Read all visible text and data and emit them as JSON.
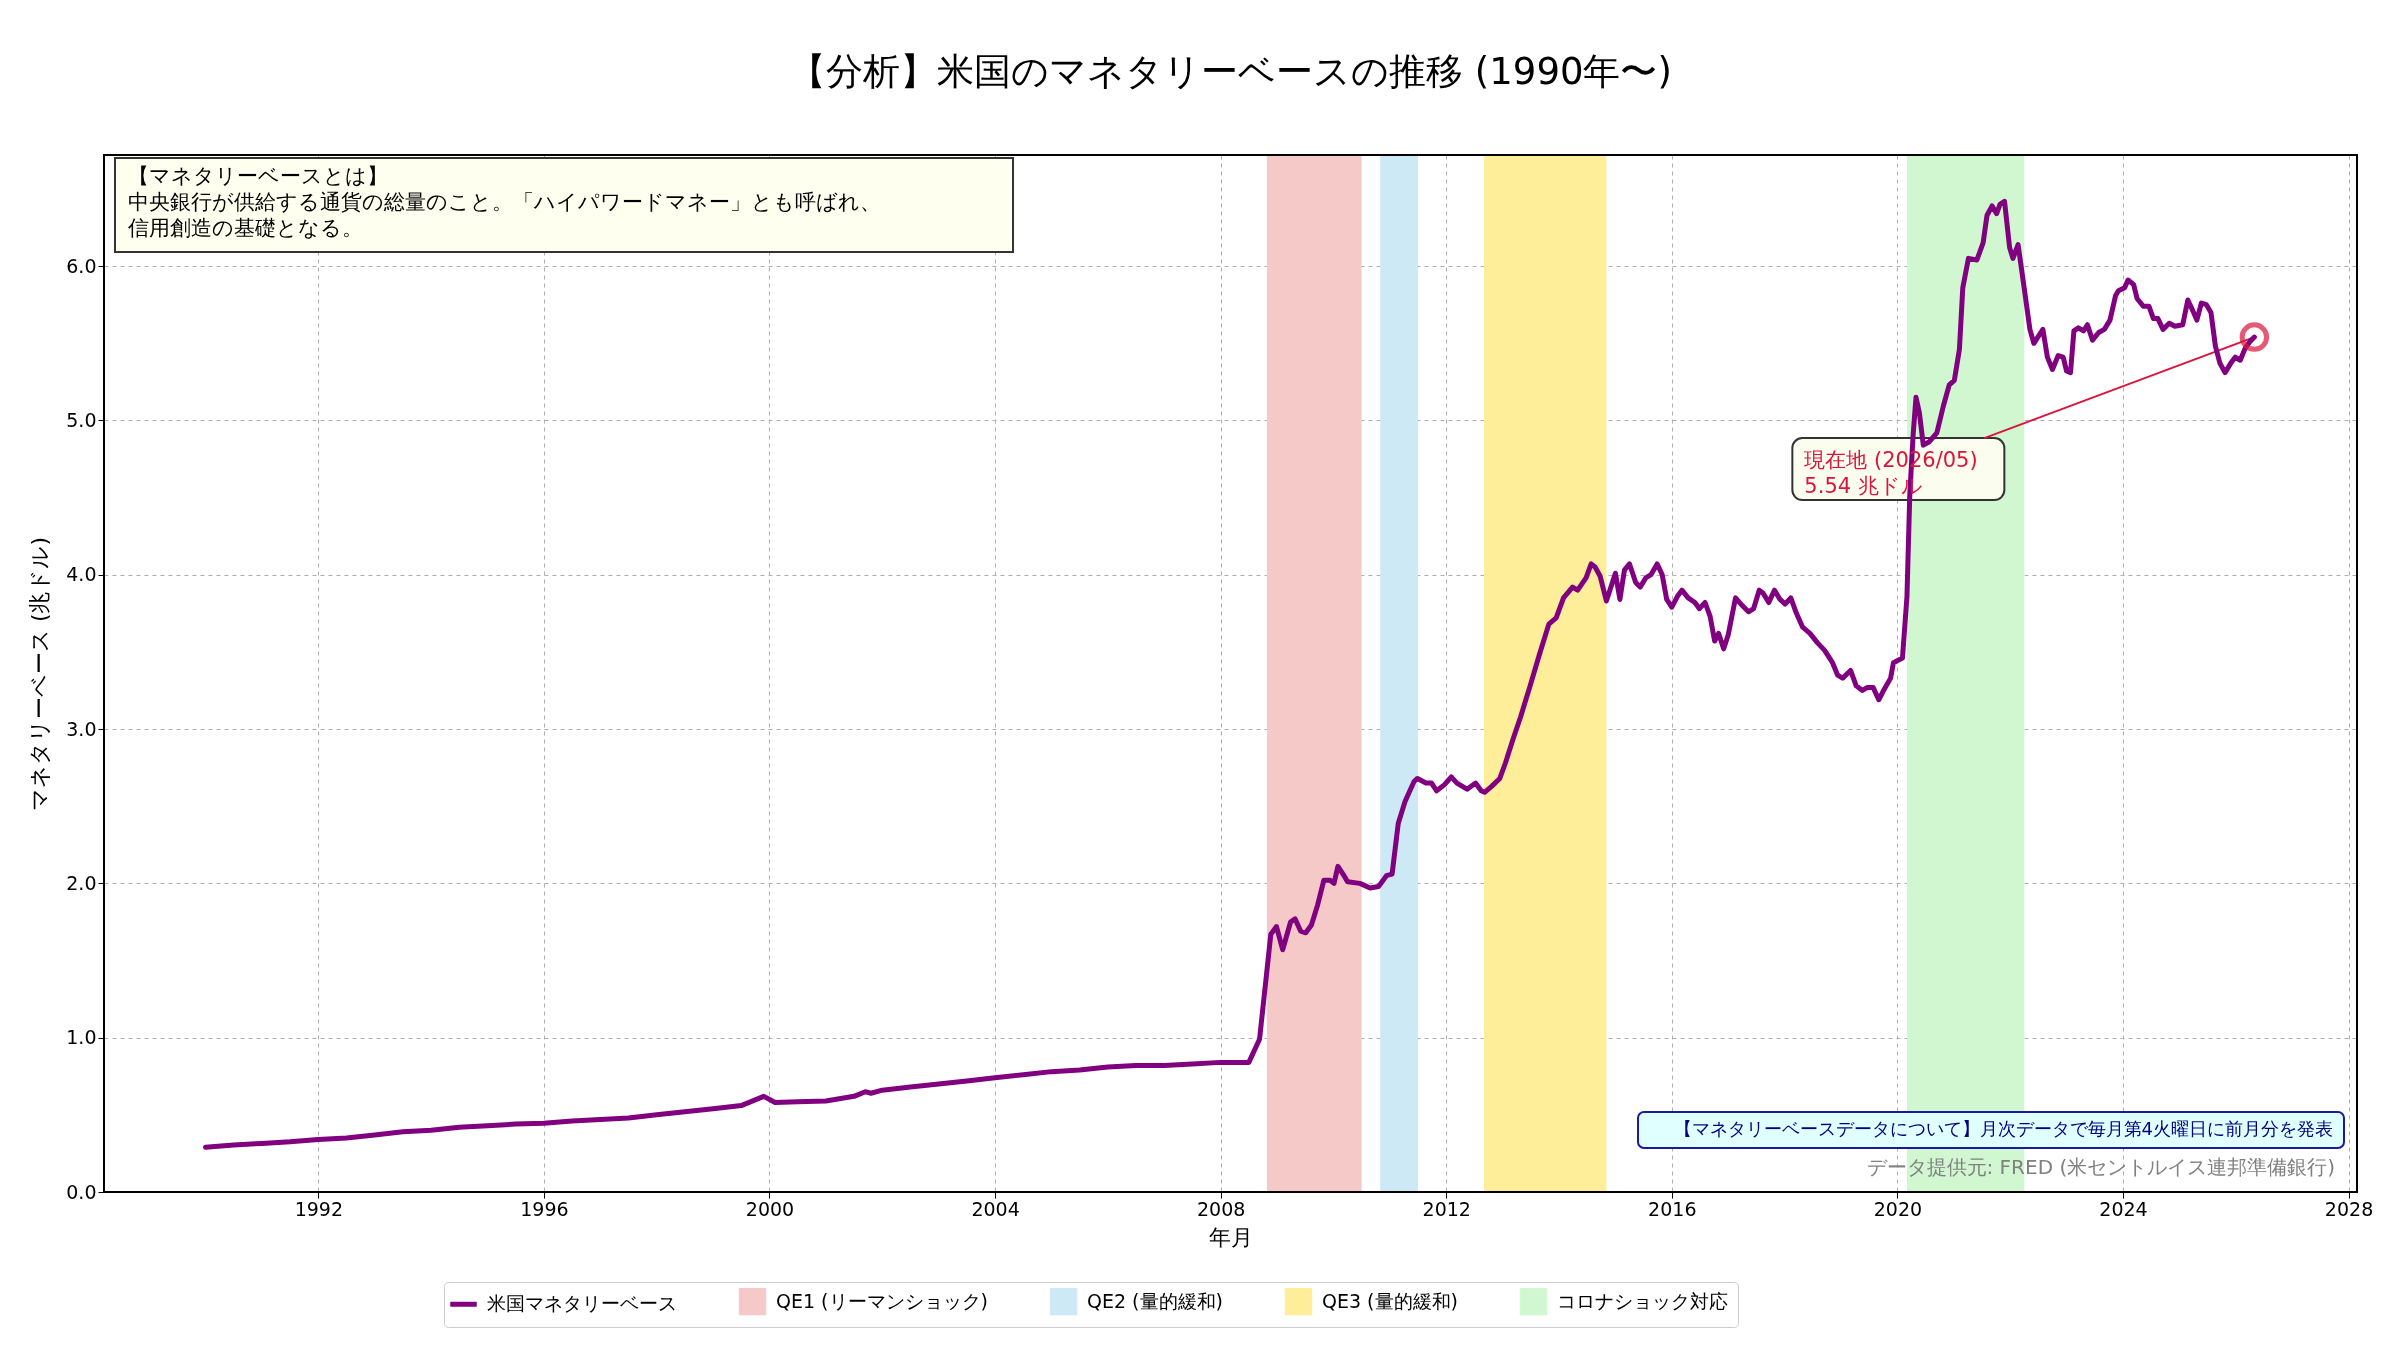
{
  "chart_data": {
    "type": "line",
    "title": "【分析】米国のマネタリーベースの推移 (1990年〜)",
    "xlabel": "年月",
    "ylabel": "マネタリーベース (兆ドル)",
    "x": [
      1990.0,
      1990.5,
      1991.0,
      1991.5,
      1992.0,
      1992.5,
      1993.0,
      1993.5,
      1994.0,
      1994.5,
      1995.0,
      1995.5,
      1996.0,
      1996.5,
      1997.0,
      1997.5,
      1998.0,
      1998.5,
      1999.0,
      1999.5,
      1999.9,
      2000.1,
      2000.5,
      2001.0,
      2001.5,
      2001.7,
      2001.8,
      2002.0,
      2002.5,
      2003.0,
      2003.5,
      2004.0,
      2004.5,
      2005.0,
      2005.5,
      2006.0,
      2006.5,
      2007.0,
      2007.5,
      2008.0,
      2008.5,
      2008.69,
      2008.89,
      2008.99,
      2009.1,
      2009.24,
      2009.32,
      2009.42,
      2009.51,
      2009.61,
      2009.72,
      2009.83,
      2009.94,
      2010.01,
      2010.08,
      2010.17,
      2010.25,
      2010.47,
      2010.65,
      2010.8,
      2010.94,
      2011.04,
      2011.15,
      2011.27,
      2011.43,
      2011.49,
      2011.64,
      2011.74,
      2011.83,
      2011.97,
      2012.09,
      2012.19,
      2012.37,
      2012.52,
      2012.62,
      2012.68,
      2012.81,
      2012.95,
      2013.05,
      2013.19,
      2013.32,
      2013.48,
      2013.65,
      2013.82,
      2013.95,
      2014.08,
      2014.24,
      2014.33,
      2014.48,
      2014.57,
      2014.64,
      2014.73,
      2014.84,
      2015.0,
      2015.08,
      2015.16,
      2015.25,
      2015.36,
      2015.44,
      2015.54,
      2015.63,
      2015.74,
      2015.83,
      2015.91,
      2016.0,
      2016.1,
      2016.18,
      2016.29,
      2016.41,
      2016.49,
      2016.59,
      2016.68,
      2016.76,
      2016.83,
      2016.92,
      2017.0,
      2017.13,
      2017.25,
      2017.36,
      2017.45,
      2017.55,
      2017.62,
      2017.72,
      2017.82,
      2017.92,
      2018.01,
      2018.11,
      2018.21,
      2018.32,
      2018.45,
      2018.58,
      2018.71,
      2018.85,
      2018.94,
      2019.03,
      2019.17,
      2019.27,
      2019.38,
      2019.47,
      2019.57,
      2019.67,
      2019.77,
      2019.88,
      2019.93,
      2020.09,
      2020.17,
      2020.22,
      2020.28,
      2020.33,
      2020.39,
      2020.46,
      2020.56,
      2020.7,
      2020.82,
      2020.92,
      2021.01,
      2021.1,
      2021.16,
      2021.26,
      2021.41,
      2021.52,
      2021.59,
      2021.68,
      2021.76,
      2021.82,
      2021.9,
      2021.99,
      2022.05,
      2022.14,
      2022.24,
      2022.35,
      2022.42,
      2022.58,
      2022.66,
      2022.75,
      2022.85,
      2022.94,
      2023.0,
      2023.07,
      2023.13,
      2023.21,
      2023.3,
      2023.37,
      2023.46,
      2023.57,
      2023.67,
      2023.77,
      2023.87,
      2023.92,
      2024.03,
      2024.09,
      2024.19,
      2024.25,
      2024.36,
      2024.46,
      2024.54,
      2024.62,
      2024.71,
      2024.82,
      2024.92,
      2025.06,
      2025.15,
      2025.24,
      2025.31,
      2025.39,
      2025.48,
      2025.56,
      2025.64,
      2025.72,
      2025.81,
      2025.91,
      2025.99,
      2026.08,
      2026.17,
      2026.25,
      2026.33
    ],
    "series": [
      {
        "name": "米国マネタリーベース",
        "color": "#800080",
        "values": [
          0.29,
          0.305,
          0.315,
          0.325,
          0.34,
          0.35,
          0.37,
          0.39,
          0.4,
          0.42,
          0.43,
          0.44,
          0.445,
          0.46,
          0.47,
          0.48,
          0.5,
          0.52,
          0.54,
          0.56,
          0.62,
          0.58,
          0.585,
          0.59,
          0.62,
          0.65,
          0.64,
          0.66,
          0.68,
          0.7,
          0.72,
          0.74,
          0.76,
          0.78,
          0.79,
          0.81,
          0.82,
          0.82,
          0.83,
          0.84,
          0.84,
          0.99,
          1.67,
          1.72,
          1.57,
          1.75,
          1.77,
          1.69,
          1.68,
          1.73,
          1.86,
          2.02,
          2.02,
          2.0,
          2.11,
          2.06,
          2.01,
          2.0,
          1.97,
          1.98,
          2.05,
          2.06,
          2.39,
          2.53,
          2.66,
          2.68,
          2.65,
          2.65,
          2.6,
          2.64,
          2.69,
          2.65,
          2.61,
          2.65,
          2.6,
          2.59,
          2.63,
          2.68,
          2.78,
          2.94,
          3.08,
          3.27,
          3.48,
          3.68,
          3.72,
          3.85,
          3.92,
          3.9,
          3.98,
          4.07,
          4.05,
          3.99,
          3.83,
          4.01,
          3.84,
          4.03,
          4.07,
          3.95,
          3.92,
          3.98,
          4.0,
          4.07,
          4.0,
          3.84,
          3.79,
          3.86,
          3.9,
          3.85,
          3.82,
          3.78,
          3.82,
          3.73,
          3.57,
          3.62,
          3.52,
          3.61,
          3.85,
          3.8,
          3.76,
          3.78,
          3.9,
          3.88,
          3.82,
          3.9,
          3.84,
          3.81,
          3.85,
          3.75,
          3.66,
          3.62,
          3.56,
          3.51,
          3.43,
          3.35,
          3.33,
          3.38,
          3.28,
          3.25,
          3.27,
          3.27,
          3.19,
          3.26,
          3.33,
          3.43,
          3.46,
          3.86,
          4.52,
          4.91,
          5.15,
          5.05,
          4.84,
          4.86,
          4.92,
          5.1,
          5.23,
          5.26,
          5.46,
          5.86,
          6.05,
          6.04,
          6.15,
          6.33,
          6.39,
          6.34,
          6.4,
          6.42,
          6.12,
          6.05,
          6.14,
          5.88,
          5.59,
          5.5,
          5.59,
          5.41,
          5.33,
          5.42,
          5.41,
          5.32,
          5.31,
          5.58,
          5.6,
          5.58,
          5.62,
          5.52,
          5.57,
          5.59,
          5.65,
          5.81,
          5.84,
          5.86,
          5.91,
          5.88,
          5.79,
          5.74,
          5.74,
          5.66,
          5.66,
          5.59,
          5.63,
          5.61,
          5.62,
          5.78,
          5.71,
          5.65,
          5.76,
          5.75,
          5.7,
          5.48,
          5.37,
          5.31,
          5.37,
          5.41,
          5.39,
          5.47,
          5.51,
          5.54
        ]
      }
    ],
    "xlim": [
      1988.2,
      2028.15
    ],
    "ylim": [
      0,
      6.72
    ],
    "xticks": [
      1992,
      1996,
      2000,
      2004,
      2008,
      2012,
      2016,
      2020,
      2024,
      2028
    ],
    "yticks": [
      {
        "value": 0,
        "label": "0.0"
      },
      {
        "value": 1,
        "label": "1.0"
      },
      {
        "value": 2,
        "label": "2.0"
      },
      {
        "value": 3,
        "label": "3.0"
      },
      {
        "value": 4,
        "label": "4.0"
      },
      {
        "value": 5,
        "label": "5.0"
      },
      {
        "value": 6,
        "label": "6.0"
      }
    ],
    "grid": true,
    "legend": "bottom",
    "bands": [
      {
        "axis": "x",
        "from": 2008.82,
        "to": 2010.5,
        "label": "QE1 (リーマンショック)",
        "color": "#f6c9c9"
      },
      {
        "axis": "x",
        "from": 2010.83,
        "to": 2011.5,
        "label": "QE2 (量的緩和)",
        "color": "#cde9f5"
      },
      {
        "axis": "x",
        "from": 2012.67,
        "to": 2014.84,
        "label": "QE3 (量的緩和)",
        "color": "#feed99"
      },
      {
        "axis": "x",
        "from": 2020.17,
        "to": 2022.25,
        "label": "コロナショック対応",
        "color": "#d1f7d1"
      }
    ],
    "annotations": [
      "【マネタリーベースとは】",
      "中央銀行が供給する通貨の総量のこと。「ハイパワードマネー」とも呼ばれ、信用創造の基礎となる。",
      {
        "text": "現在地 (2026/05)\n5.54 兆ドル",
        "x": 2026.33,
        "y": 5.54
      },
      "【マネタリーベースデータについて】月次データで毎月第4火曜日に前月分を発表",
      "データ提供元: FRED (米セントルイス連邦準備銀行)"
    ]
  }
}
